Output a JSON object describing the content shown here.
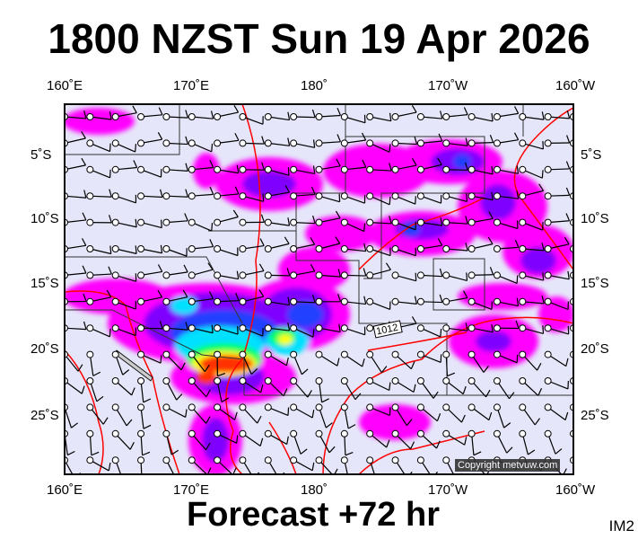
{
  "title": "1800 NZST Sun 19 Apr 2026",
  "footer": "Forecast +72 hr",
  "image_code": "IM2",
  "copyright": "Copyright metvuw.com",
  "isobar_label": "1012",
  "lon_labels": [
    "160˚E",
    "170˚E",
    "180˚",
    "170˚W",
    "160˚W"
  ],
  "lat_labels": [
    "5˚S",
    "10˚S",
    "15˚S",
    "20˚S",
    "25˚S"
  ],
  "colors": {
    "background": "#e6e6fa",
    "isobar": "#ff0000",
    "precip_light": "#ff00ff",
    "precip_mid": "#8000ff",
    "precip_blue": "#2040ff",
    "precip_cyan": "#00e0ff",
    "precip_green": "#00ff60",
    "precip_yellow": "#ffff00",
    "precip_heavy": "#ff3000"
  }
}
